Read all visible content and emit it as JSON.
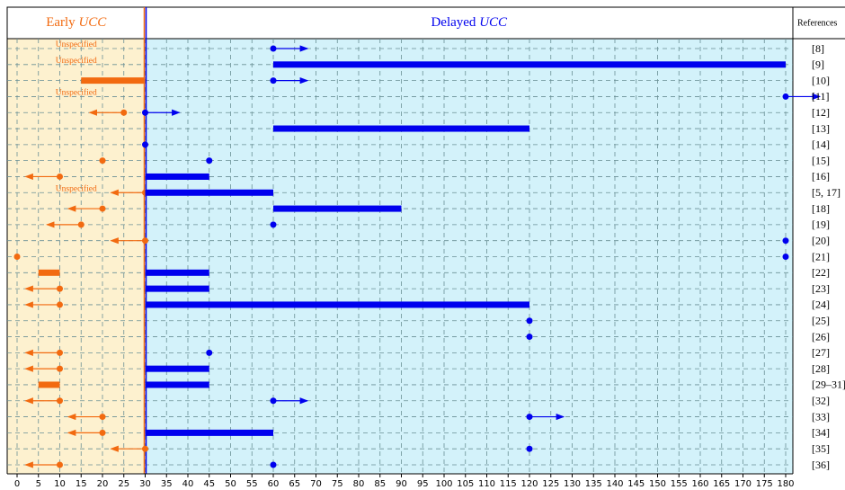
{
  "chart_data": {
    "type": "timeline",
    "header": {
      "early": "Early",
      "delayed": "Delayed",
      "term": "UCC",
      "references": "References"
    },
    "split": 30,
    "xlim": [
      0,
      180
    ],
    "xticks": [
      0,
      5,
      10,
      15,
      20,
      25,
      30,
      35,
      40,
      45,
      50,
      55,
      60,
      65,
      70,
      75,
      80,
      85,
      90,
      95,
      100,
      105,
      110,
      115,
      120,
      125,
      130,
      135,
      140,
      145,
      150,
      155,
      160,
      165,
      170,
      175,
      180
    ],
    "early_color": "#f26a10",
    "delayed_color": "#0000ee",
    "grid": true,
    "rows": [
      {
        "label": "[8]",
        "early": [
          {
            "text": "Unspecified"
          }
        ],
        "delayed": [
          {
            "point": 60,
            "arrow": "right"
          }
        ]
      },
      {
        "label": "[9]",
        "early": [
          {
            "text": "Unspecified"
          }
        ],
        "delayed": [
          {
            "bar": [
              60,
              180
            ]
          }
        ]
      },
      {
        "label": "[10]",
        "early": [
          {
            "bar": [
              15,
              30
            ]
          }
        ],
        "delayed": [
          {
            "point": 60,
            "arrow": "right"
          }
        ]
      },
      {
        "label": "[11]",
        "early": [
          {
            "text": "Unspecified"
          }
        ],
        "delayed": [
          {
            "point": 180,
            "arrow": "right"
          }
        ]
      },
      {
        "label": "[12]",
        "early": [
          {
            "point": 25,
            "arrow": "left"
          }
        ],
        "delayed": [
          {
            "point": 30,
            "arrow": "right"
          }
        ]
      },
      {
        "label": "[13]",
        "early": [],
        "delayed": [
          {
            "bar": [
              60,
              120
            ]
          }
        ]
      },
      {
        "label": "[14]",
        "early": [],
        "delayed": [
          {
            "point": 30
          }
        ]
      },
      {
        "label": "[15]",
        "early": [
          {
            "point": 20
          }
        ],
        "delayed": [
          {
            "point": 45
          }
        ]
      },
      {
        "label": "[16]",
        "early": [
          {
            "point": 10,
            "arrow": "left"
          }
        ],
        "delayed": [
          {
            "bar": [
              30,
              45
            ]
          }
        ]
      },
      {
        "label": "[5, 17]",
        "early": [
          {
            "text": "Unspecified"
          },
          {
            "point": 30,
            "arrow": "left"
          }
        ],
        "delayed": [
          {
            "bar": [
              30,
              60
            ]
          }
        ]
      },
      {
        "label": "[18]",
        "early": [
          {
            "point": 20,
            "arrow": "left"
          }
        ],
        "delayed": [
          {
            "bar": [
              60,
              90
            ]
          }
        ]
      },
      {
        "label": "[19]",
        "early": [
          {
            "point": 15,
            "arrow": "left"
          }
        ],
        "delayed": [
          {
            "point": 60
          }
        ]
      },
      {
        "label": "[20]",
        "early": [
          {
            "point": 30,
            "arrow": "left"
          }
        ],
        "delayed": [
          {
            "point": 180
          }
        ]
      },
      {
        "label": "[21]",
        "early": [
          {
            "point": 0
          }
        ],
        "delayed": [
          {
            "point": 180
          }
        ]
      },
      {
        "label": "[22]",
        "early": [
          {
            "bar": [
              5,
              10
            ]
          }
        ],
        "delayed": [
          {
            "bar": [
              30,
              45
            ]
          }
        ]
      },
      {
        "label": "[23]",
        "early": [
          {
            "point": 10,
            "arrow": "left"
          }
        ],
        "delayed": [
          {
            "bar": [
              30,
              45
            ]
          }
        ]
      },
      {
        "label": "[24]",
        "early": [
          {
            "point": 10,
            "arrow": "left"
          }
        ],
        "delayed": [
          {
            "bar": [
              30,
              120
            ]
          }
        ]
      },
      {
        "label": "[25]",
        "early": [],
        "delayed": [
          {
            "point": 120
          }
        ]
      },
      {
        "label": "[26]",
        "early": [],
        "delayed": [
          {
            "point": 120
          }
        ]
      },
      {
        "label": "[27]",
        "early": [
          {
            "point": 10,
            "arrow": "left"
          }
        ],
        "delayed": [
          {
            "point": 45
          }
        ]
      },
      {
        "label": "[28]",
        "early": [
          {
            "point": 10,
            "arrow": "left"
          }
        ],
        "delayed": [
          {
            "bar": [
              30,
              45
            ]
          }
        ]
      },
      {
        "label": "[29–31]",
        "early": [
          {
            "bar": [
              5,
              10
            ]
          }
        ],
        "delayed": [
          {
            "bar": [
              30,
              45
            ]
          }
        ]
      },
      {
        "label": "[32]",
        "early": [
          {
            "point": 10,
            "arrow": "left"
          }
        ],
        "delayed": [
          {
            "point": 60,
            "arrow": "right"
          }
        ]
      },
      {
        "label": "[33]",
        "early": [
          {
            "point": 20,
            "arrow": "left"
          }
        ],
        "delayed": [
          {
            "point": 120,
            "arrow": "right"
          }
        ]
      },
      {
        "label": "[34]",
        "early": [
          {
            "point": 20,
            "arrow": "left"
          }
        ],
        "delayed": [
          {
            "bar": [
              30,
              60
            ]
          }
        ]
      },
      {
        "label": "[35]",
        "early": [
          {
            "point": 30,
            "arrow": "left"
          }
        ],
        "delayed": [
          {
            "point": 120
          }
        ]
      },
      {
        "label": "[36]",
        "early": [
          {
            "point": 10,
            "arrow": "left"
          }
        ],
        "delayed": [
          {
            "point": 60
          }
        ]
      }
    ]
  }
}
